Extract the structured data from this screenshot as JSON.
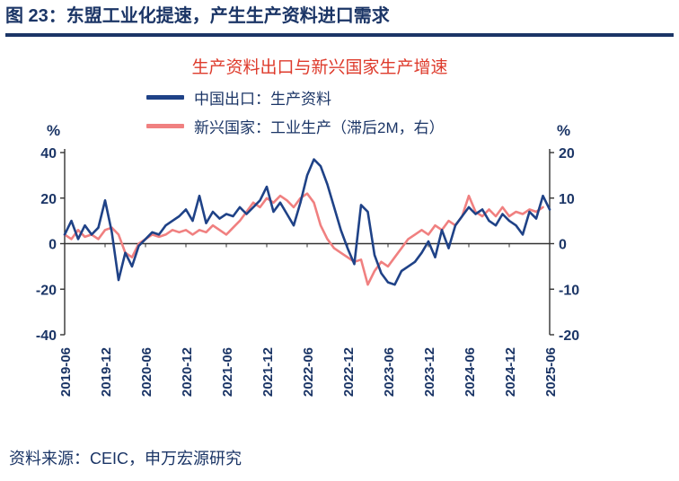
{
  "header": {
    "title": "图 23：东盟工业化提速，产生生产资料进口需求"
  },
  "footer": {
    "source": "资料来源：CEIC，申万宏源研究"
  },
  "colors": {
    "navy": "#1B3566",
    "red": "#DE3B2C",
    "pink": "#F08080",
    "line_navy": "#1F4287",
    "axis": "#333333"
  },
  "chart_data": {
    "type": "line",
    "title": "生产资料出口与新兴国家生产增速",
    "left_axis": {
      "unit": "%",
      "min": -40,
      "max": 40,
      "ticks": [
        40,
        20,
        0,
        -20,
        -40
      ]
    },
    "right_axis": {
      "unit": "%",
      "min": -20,
      "max": 20,
      "ticks": [
        20,
        10,
        0,
        -10,
        -20
      ]
    },
    "x_start": "2019-06",
    "x_interval": "monthly",
    "x_ticks": [
      "2019-06",
      "2019-12",
      "2020-06",
      "2020-12",
      "2021-06",
      "2021-12",
      "2022-06",
      "2022-12",
      "2023-06",
      "2023-12",
      "2024-06",
      "2024-12",
      "2025-06"
    ],
    "legend_position": "top-left",
    "grid": false,
    "series": [
      {
        "name": "中国出口：生产资料",
        "axis": "left",
        "color": "#1F4287",
        "values": [
          4,
          10,
          2,
          8,
          4,
          7,
          19,
          5,
          -16,
          -4,
          -10,
          -1,
          2,
          5,
          4,
          8,
          10,
          12,
          15,
          10,
          21,
          9,
          14,
          11,
          13,
          12,
          16,
          13,
          16,
          19,
          25,
          14,
          18,
          13,
          8,
          18,
          30,
          37,
          34,
          26,
          16,
          6,
          -2,
          -9,
          17,
          14,
          -5,
          -13,
          -17,
          -18,
          -12,
          -10,
          -8,
          -4,
          1,
          -6,
          6,
          -2,
          8,
          12,
          16,
          13,
          15,
          10,
          8,
          13,
          10,
          8,
          4,
          14,
          11,
          21,
          15
        ]
      },
      {
        "name": "新兴国家：工业生产（滞后2M，右）",
        "axis": "right",
        "color": "#F08080",
        "values": [
          2,
          1,
          3,
          1.5,
          2,
          1,
          3,
          3.5,
          2,
          -2,
          -3,
          0,
          1,
          2,
          1.5,
          2,
          3,
          2.5,
          3,
          2,
          3,
          2.5,
          4,
          3,
          2,
          3.5,
          5,
          7,
          9,
          8,
          10,
          9,
          10.5,
          9.5,
          8,
          10,
          11,
          9,
          4,
          1,
          -1,
          -2,
          -3,
          -4,
          -3.5,
          -9,
          -6,
          -4,
          -5,
          -3,
          -1,
          1,
          2,
          3,
          2,
          4,
          3,
          5,
          4,
          6,
          10.5,
          7,
          6,
          7.5,
          6,
          8,
          6,
          7,
          6.5,
          7.5,
          7,
          8,
          null
        ]
      }
    ]
  }
}
